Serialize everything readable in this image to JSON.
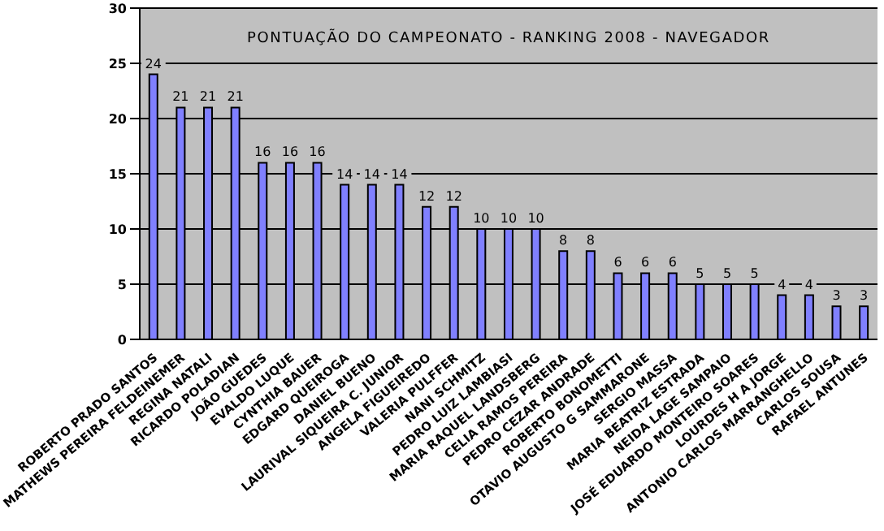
{
  "chart_data": {
    "type": "bar",
    "title": "PONTUAÇÃO DO CAMPEONATO - RANKING 2008 - NAVEGADOR",
    "categories": [
      "ROBERTO PRADO SANTOS",
      "MATHEWS PEREIRA FELDEINEMER",
      "REGINA NATALI",
      "RICARDO POLADIAN",
      "JOÃO GUEDES",
      "EVALDO LUQUE",
      "CYNTHIA BAUER",
      "EDGARD QUEIROGA",
      "DANIEL BUENO",
      "LAURIVAL SIQUEIRA C. JUNIOR",
      "ANGELA FIGUEIREDO",
      "VALERIA PULFFER",
      "NANI SCHMITZ",
      "PEDRO LUIZ LAMBIASI",
      "MARIA RAQUEL LANDSBERG",
      "CELIA RAMOS PEREIRA",
      "PEDRO CEZAR ANDRADE",
      "ROBERTO BONOMETTI",
      "OTAVIO AUGUSTO G SAMMARONE",
      "SERGIO MASSA",
      "MARIA BEATRIZ ESTRADA",
      "NEIDA LAGE SAMPAIO",
      "JOSÉ EDUARDO MONTEIRO SOARES",
      "LOURDES H A JORGE",
      "ANTONIO CARLOS MARRANGHELLO",
      "CARLOS SOUSA",
      "RAFAEL ANTUNES"
    ],
    "values": [
      24,
      21,
      21,
      21,
      16,
      16,
      16,
      14,
      14,
      14,
      12,
      12,
      10,
      10,
      10,
      8,
      8,
      6,
      6,
      6,
      5,
      5,
      5,
      4,
      4,
      3,
      3
    ],
    "color": "#8080ff",
    "ylim": [
      0,
      30
    ],
    "yticks": [
      0,
      5,
      10,
      15,
      20,
      25,
      30
    ],
    "grid": "y",
    "data_labels": true
  }
}
